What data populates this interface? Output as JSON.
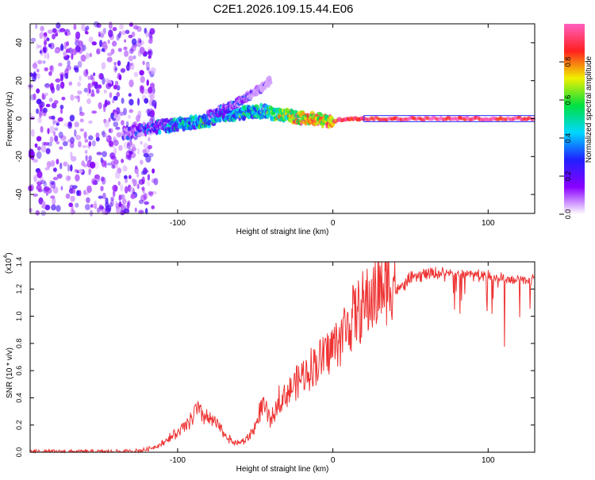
{
  "title": "C2E1.2026.109.15.44.E06",
  "chart_data": [
    {
      "type": "heatmap",
      "title": "C2E1.2026.109.15.44.E06",
      "xlabel": "Height of straight line (km)",
      "ylabel": "Frequency (Hz)",
      "xlim": [
        -195,
        130
      ],
      "ylim": [
        -50,
        50
      ],
      "x_ticks": [
        -100,
        0,
        100
      ],
      "x_tick_labels": [
        "-100",
        "0",
        "100"
      ],
      "y_ticks": [
        -40,
        -20,
        0,
        20,
        40
      ],
      "y_tick_labels": [
        "-40",
        "-20",
        "0",
        "20",
        "40"
      ],
      "colorbar": {
        "label": "Normalized spectral amplitude",
        "range": [
          0,
          1
        ],
        "ticks": [
          0.0,
          0.2,
          0.4,
          0.6,
          0.8
        ],
        "tick_labels": [
          "0.0",
          "0.2",
          "0.4",
          "0.6",
          "0.8"
        ],
        "colors": [
          "#ffffff",
          "#8a00ff",
          "#2020ff",
          "#00d8ff",
          "#00e040",
          "#f0f000",
          "#ff2020",
          "#ff60c0"
        ]
      },
      "features": [
        {
          "name": "noise-region",
          "x_range": [
            -195,
            -118
          ],
          "freq_range": [
            -50,
            50
          ],
          "typical_amplitude": 0.12
        },
        {
          "name": "carrier-track",
          "x": [
            -135,
            -120,
            -100,
            -80,
            -70,
            -60,
            -45,
            -35,
            -20,
            -10,
            0,
            5,
            20,
            60,
            130
          ],
          "freq": [
            -8,
            -5,
            -3,
            -1,
            2,
            3,
            4,
            2,
            0.5,
            0,
            -2,
            -0.5,
            0,
            0,
            0
          ],
          "amplitude": [
            0.22,
            0.3,
            0.5,
            0.55,
            0.5,
            0.55,
            0.6,
            0.7,
            0.85,
            0.9,
            0.8,
            0.9,
            0.95,
            0.95,
            0.95
          ]
        },
        {
          "name": "upper-branch",
          "x": [
            -80,
            -70,
            -62,
            -50,
            -40
          ],
          "freq": [
            2,
            5,
            8,
            14,
            20
          ],
          "amplitude": [
            0.3,
            0.35,
            0.3,
            0.2,
            0.1
          ]
        }
      ]
    },
    {
      "type": "line",
      "title": "",
      "xlabel": "Height of straight line (km)",
      "ylabel": "SNR (10 * v/v)",
      "y_multiplier_label": "(x10^4)",
      "xlim": [
        -195,
        130
      ],
      "ylim": [
        0,
        1.4
      ],
      "x_ticks": [
        -100,
        0,
        100
      ],
      "x_tick_labels": [
        "-100",
        "0",
        "100"
      ],
      "y_ticks": [
        0.0,
        0.2,
        0.4,
        0.6,
        0.8,
        1.0,
        1.2,
        1.4
      ],
      "y_tick_labels": [
        "0.0",
        "0.2",
        "0.4",
        "0.6",
        "0.8",
        "1.0",
        "1.2",
        "1.4"
      ],
      "series": [
        {
          "name": "SNR",
          "color": "#ee3333",
          "x": [
            -195,
            -160,
            -130,
            -120,
            -110,
            -100,
            -95,
            -90,
            -88,
            -85,
            -80,
            -75,
            -70,
            -65,
            -60,
            -55,
            -50,
            -47,
            -45,
            -43,
            -40,
            -37,
            -35,
            -33,
            -30,
            -25,
            -20,
            -15,
            -10,
            -5,
            0,
            5,
            10,
            15,
            20,
            25,
            30,
            35,
            40,
            45,
            50,
            60,
            70,
            80,
            90,
            100,
            110,
            115,
            120,
            125,
            130
          ],
          "y": [
            0.005,
            0.003,
            0.005,
            0.02,
            0.06,
            0.13,
            0.17,
            0.24,
            0.29,
            0.25,
            0.22,
            0.19,
            0.12,
            0.07,
            0.06,
            0.09,
            0.17,
            0.27,
            0.31,
            0.27,
            0.21,
            0.26,
            0.37,
            0.35,
            0.39,
            0.45,
            0.5,
            0.55,
            0.6,
            0.64,
            0.7,
            0.76,
            0.86,
            0.92,
            0.97,
            1.02,
            1.08,
            1.12,
            1.18,
            1.22,
            1.28,
            1.31,
            1.32,
            1.32,
            1.31,
            1.3,
            1.28,
            1.26,
            1.27,
            1.26,
            1.27
          ]
        }
      ]
    }
  ]
}
